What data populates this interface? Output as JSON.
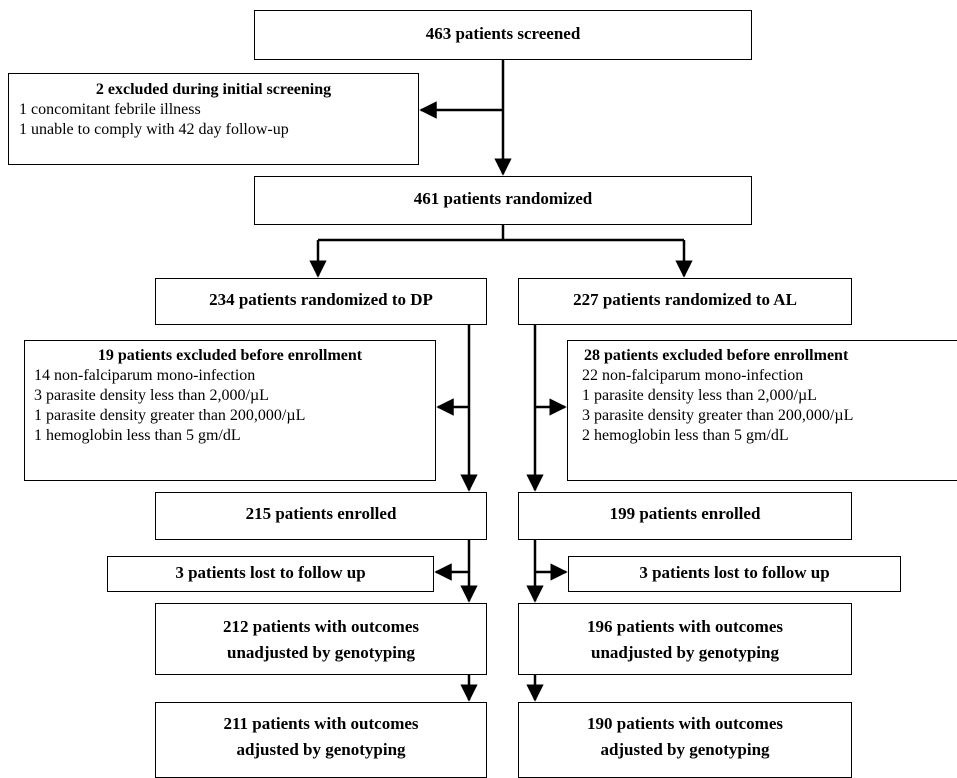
{
  "screened": "463 patients screened",
  "excluded_initial": {
    "title": "2 excluded during initial screening",
    "lines": [
      "1 concomitant febrile illness",
      "1 unable to comply with 42 day follow-up"
    ]
  },
  "randomized": "461 patients randomized",
  "dp": {
    "randomized": "234 patients randomized to DP",
    "excluded": {
      "title": "19 patients excluded before enrollment",
      "lines": [
        "14 non-falciparum mono-infection",
        "3  parasite density less than 2,000/µL",
        "1  parasite density greater than 200,000/µL",
        "1  hemoglobin less than 5 gm/dL"
      ]
    },
    "enrolled": "215 patients enrolled",
    "lost": "3 patients lost to follow up",
    "unadjusted": [
      "212 patients with outcomes",
      "unadjusted by genotyping"
    ],
    "adjusted": [
      "211 patients with outcomes",
      "adjusted by genotyping"
    ]
  },
  "al": {
    "randomized": "227 patients randomized to AL",
    "excluded": {
      "title": "28 patients excluded before enrollment",
      "lines": [
        "22 non-falciparum mono-infection",
        "1  parasite density less than 2,000/µL",
        "3  parasite density greater than 200,000/µL",
        "2  hemoglobin less than 5 gm/dL"
      ]
    },
    "enrolled": "199 patients enrolled",
    "lost": "3 patients lost to follow up",
    "unadjusted": [
      "196 patients with outcomes",
      "unadjusted by genotyping"
    ],
    "adjusted": [
      "190 patients with outcomes",
      "adjusted by genotyping"
    ]
  }
}
